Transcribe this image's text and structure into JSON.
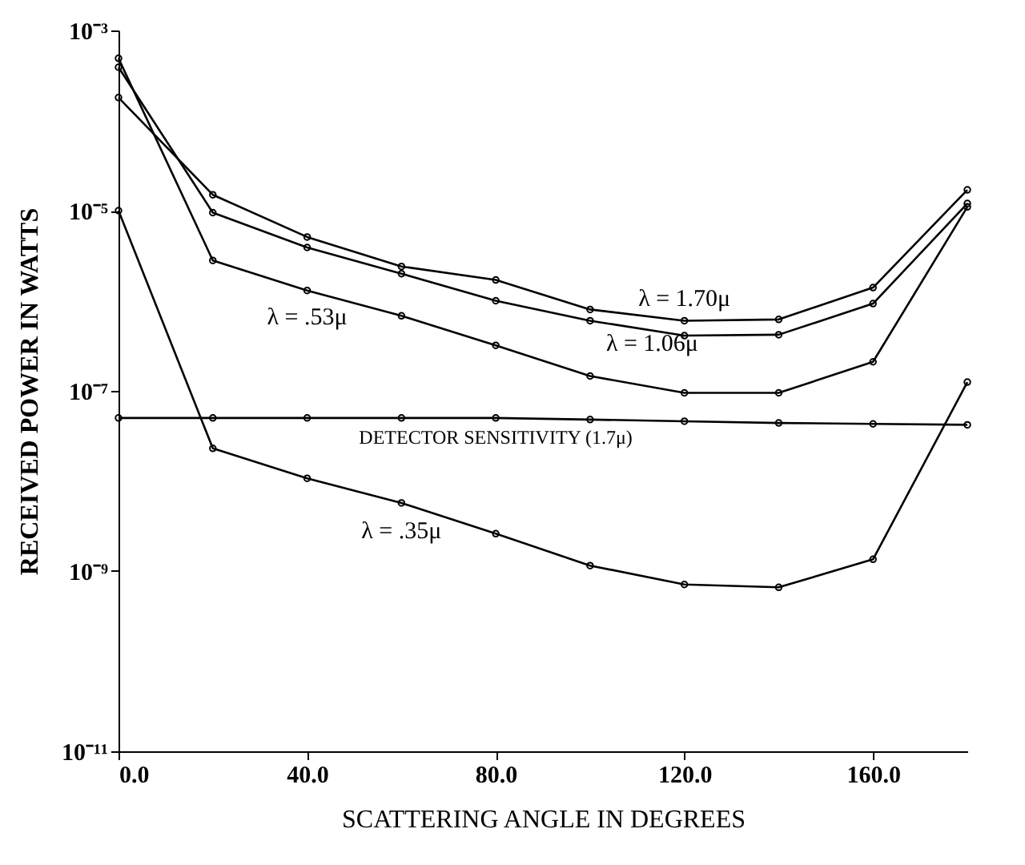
{
  "chart_data": {
    "type": "line",
    "xlabel": "SCATTERING ANGLE IN DEGREES",
    "ylabel": "RECEIVED POWER IN WATTS",
    "x": [
      0,
      20,
      40,
      60,
      80,
      100,
      120,
      140,
      160,
      180
    ],
    "series": [
      {
        "name": "λ = 1.70μ",
        "color": "#000000",
        "values": [
          0.00018,
          1.5e-05,
          5.1e-06,
          2.4e-06,
          1.7e-06,
          8e-07,
          6e-07,
          6.2e-07,
          1.4e-06,
          1.7e-05
        ]
      },
      {
        "name": "λ = 1.06μ",
        "color": "#000000",
        "values": [
          0.00039,
          9.5e-06,
          3.9e-06,
          2e-06,
          1e-06,
          6e-07,
          4.1e-07,
          4.2e-07,
          9.3e-07,
          1.2e-05
        ]
      },
      {
        "name": "λ = .53μ",
        "color": "#000000",
        "values": [
          0.00049,
          2.8e-06,
          1.3e-06,
          6.8e-07,
          3.2e-07,
          1.46e-07,
          9.5e-08,
          9.5e-08,
          2.1e-07,
          1.1e-05
        ]
      },
      {
        "name": "λ = .35μ",
        "color": "#000000",
        "values": [
          1e-05,
          2.3e-08,
          1.07e-08,
          5.7e-09,
          2.6e-09,
          1.15e-09,
          7.1e-10,
          6.6e-10,
          1.35e-09,
          1.25e-07
        ]
      },
      {
        "name": "DETECTOR SENSITIVITY (1.7μ)",
        "color": "#000000",
        "values": [
          5e-08,
          5e-08,
          5e-08,
          5e-08,
          5e-08,
          4.8e-08,
          4.6e-08,
          4.4e-08,
          4.3e-08,
          4.2e-08
        ]
      }
    ],
    "xlim": [
      0,
      180
    ],
    "xticks": [
      {
        "value": 0,
        "label": "0.0"
      },
      {
        "value": 40,
        "label": "40.0"
      },
      {
        "value": 80,
        "label": "80.0"
      },
      {
        "value": 120,
        "label": "120.0"
      },
      {
        "value": 160,
        "label": "160.0"
      }
    ],
    "ylim": [
      1e-11,
      0.001
    ],
    "yticks": [
      {
        "value": 1e-11,
        "label": "10⁻¹¹"
      },
      {
        "value": 1e-09,
        "label": "10⁻⁹"
      },
      {
        "value": 1e-07,
        "label": "10⁻⁷"
      },
      {
        "value": 1e-05,
        "label": "10⁻⁵"
      },
      {
        "value": 0.001,
        "label": "10⁻³"
      }
    ],
    "log": "y",
    "grid": false,
    "marker": "circle",
    "line_style": "solid"
  }
}
